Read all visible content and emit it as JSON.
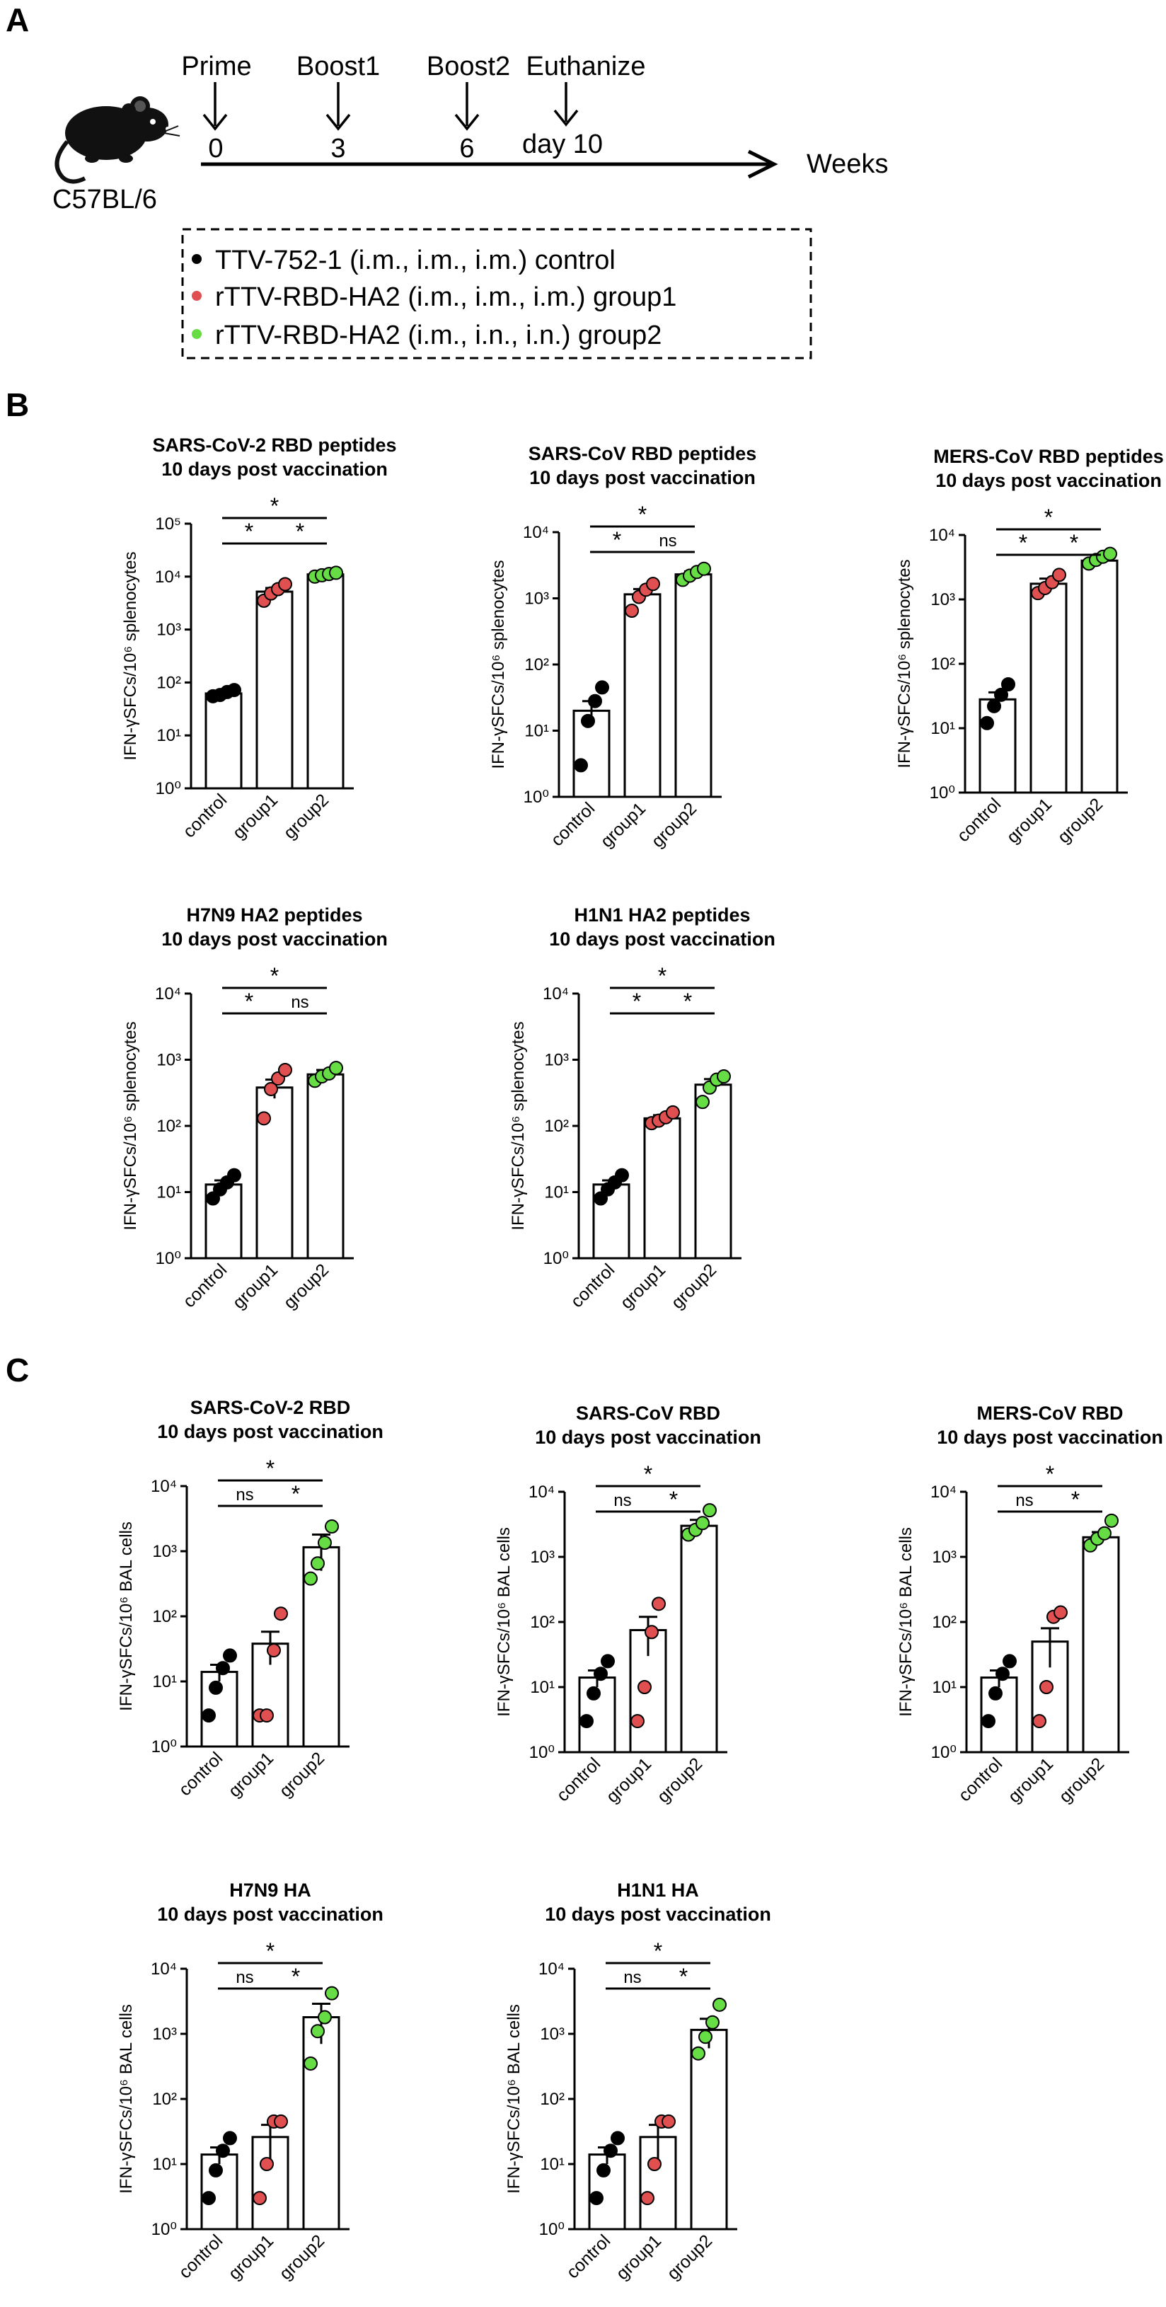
{
  "panel_labels": [
    "A",
    "B",
    "C"
  ],
  "schedule": {
    "strain": "C57BL/6",
    "events": [
      {
        "label": "Prime",
        "week": "0"
      },
      {
        "label": "Boost1",
        "week": "3"
      },
      {
        "label": "Boost2",
        "week": "6"
      },
      {
        "label": "Euthanize",
        "week": "day 10"
      }
    ],
    "axis_label": "Weeks",
    "legend": [
      {
        "color": "#000000",
        "text": "TTV-752-1 (i.m., i.m., i.m.)  control"
      },
      {
        "color": "#e05050",
        "text": "rTTV-RBD-HA2 (i.m., i.m., i.m.)  group1"
      },
      {
        "color": "#66dd44",
        "text": "rTTV-RBD-HA2 (i.m., i.n., i.n.)  group2"
      }
    ]
  },
  "colors": {
    "control": "#000000",
    "group1": "#e05050",
    "group2": "#66dd44"
  },
  "chart_data": [
    {
      "id": "B1",
      "type": "bar",
      "title": [
        "SARS-CoV-2 RBD peptides",
        "10 days post vaccination"
      ],
      "ylabel": "IFN-γSFCs/10⁶ splenocytes",
      "yscale": "log",
      "ylim": [
        1,
        100000
      ],
      "yticks": [
        1,
        10,
        100,
        1000,
        10000,
        100000
      ],
      "categories": [
        "control",
        "group1",
        "group2"
      ],
      "means": [
        62,
        5200,
        11000
      ],
      "sem": [
        6,
        900,
        400
      ],
      "points": [
        [
          55,
          58,
          66,
          72
        ],
        [
          3500,
          4800,
          5800,
          7200
        ],
        [
          10000,
          10600,
          11200,
          11800
        ]
      ],
      "comparisons": [
        {
          "from": 0,
          "to": 1,
          "label": "*"
        },
        {
          "from": 1,
          "to": 2,
          "label": "*"
        },
        {
          "from": 0,
          "to": 2,
          "label": "*"
        }
      ]
    },
    {
      "id": "B2",
      "type": "bar",
      "title": [
        "SARS-CoV RBD peptides",
        "10 days post vaccination"
      ],
      "ylabel": "IFN-γSFCs/10⁶ splenocytes",
      "yscale": "log",
      "ylim": [
        1,
        10000
      ],
      "yticks": [
        1,
        10,
        100,
        1000,
        10000
      ],
      "categories": [
        "control",
        "group1",
        "group2"
      ],
      "means": [
        20,
        1150,
        2300
      ],
      "sem": [
        8,
        230,
        250
      ],
      "points": [
        [
          3,
          14,
          28,
          45
        ],
        [
          650,
          1050,
          1350,
          1650
        ],
        [
          1900,
          2200,
          2500,
          2800
        ]
      ],
      "comparisons": [
        {
          "from": 0,
          "to": 1,
          "label": "*"
        },
        {
          "from": 1,
          "to": 2,
          "label": "ns"
        },
        {
          "from": 0,
          "to": 2,
          "label": "*"
        }
      ]
    },
    {
      "id": "B3",
      "type": "bar",
      "title": [
        "MERS-CoV RBD peptides",
        "10 days post vaccination"
      ],
      "ylabel": "IFN-γSFCs/10⁶ splenocytes",
      "yscale": "log",
      "ylim": [
        1,
        10000
      ],
      "yticks": [
        1,
        10,
        100,
        1000,
        10000
      ],
      "categories": [
        "control",
        "group1",
        "group2"
      ],
      "means": [
        28,
        1750,
        4000
      ],
      "sem": [
        8,
        350,
        500
      ],
      "points": [
        [
          12,
          22,
          33,
          48
        ],
        [
          1250,
          1500,
          1850,
          2400
        ],
        [
          3600,
          4100,
          4600,
          5100
        ]
      ],
      "comparisons": [
        {
          "from": 0,
          "to": 1,
          "label": "*"
        },
        {
          "from": 1,
          "to": 2,
          "label": "*"
        },
        {
          "from": 0,
          "to": 2,
          "label": "*"
        }
      ]
    },
    {
      "id": "B4",
      "type": "bar",
      "title": [
        "H7N9 HA2 peptides",
        "10 days post vaccination"
      ],
      "ylabel": "IFN-γSFCs/10⁶ splenocytes",
      "yscale": "log",
      "ylim": [
        1,
        10000
      ],
      "yticks": [
        1,
        10,
        100,
        1000,
        10000
      ],
      "categories": [
        "control",
        "group1",
        "group2"
      ],
      "means": [
        13,
        380,
        600
      ],
      "sem": [
        2,
        120,
        100
      ],
      "points": [
        [
          8,
          11,
          14,
          18
        ],
        [
          130,
          360,
          520,
          700
        ],
        [
          480,
          560,
          620,
          750
        ]
      ],
      "comparisons": [
        {
          "from": 0,
          "to": 1,
          "label": "*"
        },
        {
          "from": 1,
          "to": 2,
          "label": "ns"
        },
        {
          "from": 0,
          "to": 2,
          "label": "*"
        }
      ]
    },
    {
      "id": "B5",
      "type": "bar",
      "title": [
        "H1N1 HA2 peptides",
        "10 days post vaccination"
      ],
      "ylabel": "IFN-γSFCs/10⁶ splenocytes",
      "yscale": "log",
      "ylim": [
        1,
        10000
      ],
      "yticks": [
        1,
        10,
        100,
        1000,
        10000
      ],
      "categories": [
        "control",
        "group1",
        "group2"
      ],
      "means": [
        13,
        130,
        420
      ],
      "sem": [
        2,
        15,
        90
      ],
      "points": [
        [
          8,
          11,
          14,
          18
        ],
        [
          110,
          120,
          135,
          160
        ],
        [
          230,
          380,
          500,
          560
        ]
      ],
      "comparisons": [
        {
          "from": 0,
          "to": 1,
          "label": "*"
        },
        {
          "from": 1,
          "to": 2,
          "label": "*"
        },
        {
          "from": 0,
          "to": 2,
          "label": "*"
        }
      ]
    },
    {
      "id": "C1",
      "type": "bar",
      "title": [
        "SARS-CoV-2 RBD",
        "10 days post vaccination"
      ],
      "ylabel": "IFN-γSFCs/10⁶ BAL cells",
      "yscale": "log",
      "ylim": [
        1,
        10000
      ],
      "yticks": [
        1,
        10,
        100,
        1000,
        10000
      ],
      "categories": [
        "control",
        "group1",
        "group2"
      ],
      "means": [
        14,
        38,
        1150
      ],
      "sem": [
        4,
        20,
        650
      ],
      "points": [
        [
          3,
          8,
          16,
          25
        ],
        [
          3,
          3,
          30,
          110
        ],
        [
          380,
          650,
          1350,
          2400
        ]
      ],
      "comparisons": [
        {
          "from": 0,
          "to": 1,
          "label": "ns"
        },
        {
          "from": 1,
          "to": 2,
          "label": "*"
        },
        {
          "from": 0,
          "to": 2,
          "label": "*"
        }
      ]
    },
    {
      "id": "C2",
      "type": "bar",
      "title": [
        "SARS-CoV RBD",
        "10 days post vaccination"
      ],
      "ylabel": "IFN-γSFCs/10⁶ BAL cells",
      "yscale": "log",
      "ylim": [
        1,
        10000
      ],
      "yticks": [
        1,
        10,
        100,
        1000,
        10000
      ],
      "categories": [
        "control",
        "group1",
        "group2"
      ],
      "means": [
        14,
        75,
        3000
      ],
      "sem": [
        4,
        45,
        700
      ],
      "points": [
        [
          3,
          8,
          16,
          25
        ],
        [
          3,
          10,
          70,
          190
        ],
        [
          2200,
          2600,
          3300,
          5200
        ]
      ],
      "comparisons": [
        {
          "from": 0,
          "to": 1,
          "label": "ns"
        },
        {
          "from": 1,
          "to": 2,
          "label": "*"
        },
        {
          "from": 0,
          "to": 2,
          "label": "*"
        }
      ]
    },
    {
      "id": "C3",
      "type": "bar",
      "title": [
        "MERS-CoV RBD",
        "10 days post vaccination"
      ],
      "ylabel": "IFN-γSFCs/10⁶ BAL cells",
      "yscale": "log",
      "ylim": [
        1,
        10000
      ],
      "yticks": [
        1,
        10,
        100,
        1000,
        10000
      ],
      "categories": [
        "control",
        "group1",
        "group2"
      ],
      "means": [
        14,
        50,
        2000
      ],
      "sem": [
        4,
        30,
        400
      ],
      "points": [
        [
          3,
          8,
          16,
          25
        ],
        [
          3,
          10,
          120,
          140
        ],
        [
          1500,
          1900,
          2300,
          3600
        ]
      ],
      "comparisons": [
        {
          "from": 0,
          "to": 1,
          "label": "ns"
        },
        {
          "from": 1,
          "to": 2,
          "label": "*"
        },
        {
          "from": 0,
          "to": 2,
          "label": "*"
        }
      ]
    },
    {
      "id": "C4",
      "type": "bar",
      "title": [
        "H7N9 HA",
        "10 days post vaccination"
      ],
      "ylabel": "IFN-γSFCs/10⁶ BAL cells",
      "yscale": "log",
      "ylim": [
        1,
        10000
      ],
      "yticks": [
        1,
        10,
        100,
        1000,
        10000
      ],
      "categories": [
        "control",
        "group1",
        "group2"
      ],
      "means": [
        14,
        26,
        1800
      ],
      "sem": [
        4,
        14,
        1100
      ],
      "points": [
        [
          3,
          8,
          16,
          25
        ],
        [
          3,
          10,
          45,
          45
        ],
        [
          350,
          1100,
          1800,
          4200
        ]
      ],
      "comparisons": [
        {
          "from": 0,
          "to": 1,
          "label": "ns"
        },
        {
          "from": 1,
          "to": 2,
          "label": "*"
        },
        {
          "from": 0,
          "to": 2,
          "label": "*"
        }
      ]
    },
    {
      "id": "C5",
      "type": "bar",
      "title": [
        "H1N1 HA",
        "10 days post vaccination"
      ],
      "ylabel": "IFN-γSFCs/10⁶ BAL cells",
      "yscale": "log",
      "ylim": [
        1,
        10000
      ],
      "yticks": [
        1,
        10,
        100,
        1000,
        10000
      ],
      "categories": [
        "control",
        "group1",
        "group2"
      ],
      "means": [
        14,
        26,
        1150
      ],
      "sem": [
        4,
        14,
        550
      ],
      "points": [
        [
          3,
          8,
          16,
          25
        ],
        [
          3,
          10,
          45,
          45
        ],
        [
          500,
          900,
          1500,
          2800
        ]
      ],
      "comparisons": [
        {
          "from": 0,
          "to": 1,
          "label": "ns"
        },
        {
          "from": 1,
          "to": 2,
          "label": "*"
        },
        {
          "from": 0,
          "to": 2,
          "label": "*"
        }
      ]
    }
  ]
}
